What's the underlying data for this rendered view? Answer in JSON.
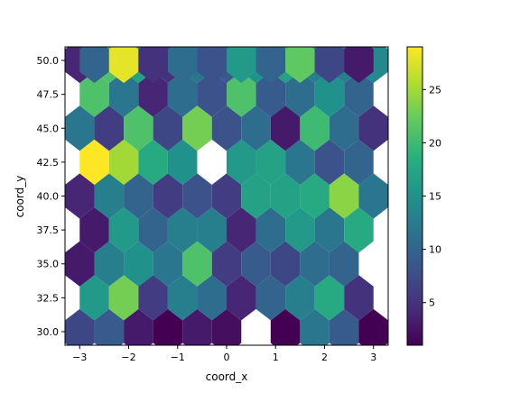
{
  "chart_data": {
    "type": "heatmap",
    "subtype": "hexbin",
    "title": "",
    "xlabel": "coord_x",
    "ylabel": "coord_y",
    "xlim": [
      -3.3,
      3.3
    ],
    "ylim": [
      29.0,
      51.0
    ],
    "xticks": [
      -3,
      -2,
      -1,
      0,
      1,
      2,
      3
    ],
    "xtick_labels": [
      "−3",
      "−2",
      "−1",
      "0",
      "1",
      "2",
      "3"
    ],
    "yticks": [
      30.0,
      32.5,
      35.0,
      37.5,
      40.0,
      42.5,
      45.0,
      47.5,
      50.0
    ],
    "ytick_labels": [
      "30.0",
      "32.5",
      "35.0",
      "37.5",
      "40.0",
      "42.5",
      "45.0",
      "47.5",
      "50.0"
    ],
    "colormap": "viridis",
    "color_range": [
      1,
      29
    ],
    "colorbar_ticks": [
      5,
      10,
      15,
      20,
      25
    ],
    "colorbar_tick_labels": [
      "5",
      "10",
      "15",
      "20",
      "25"
    ],
    "hex_size": [
      0.6,
      2.5
    ],
    "bins": [
      {
        "x": -3.0,
        "y": 30.0,
        "count": 7
      },
      {
        "x": -2.4,
        "y": 30.0,
        "count": 9
      },
      {
        "x": -1.8,
        "y": 30.0,
        "count": 3
      },
      {
        "x": -1.2,
        "y": 30.0,
        "count": 1
      },
      {
        "x": -0.6,
        "y": 30.0,
        "count": 3
      },
      {
        "x": 0.0,
        "y": 30.0,
        "count": 2
      },
      {
        "x": 1.2,
        "y": 30.0,
        "count": 1
      },
      {
        "x": 1.8,
        "y": 30.0,
        "count": 12
      },
      {
        "x": 2.4,
        "y": 30.0,
        "count": 9
      },
      {
        "x": 3.0,
        "y": 30.0,
        "count": 1
      },
      {
        "x": -2.7,
        "y": 32.5,
        "count": 16
      },
      {
        "x": -2.1,
        "y": 32.5,
        "count": 23
      },
      {
        "x": -1.5,
        "y": 32.5,
        "count": 6
      },
      {
        "x": -0.9,
        "y": 32.5,
        "count": 13
      },
      {
        "x": -0.3,
        "y": 32.5,
        "count": 11
      },
      {
        "x": 0.3,
        "y": 32.5,
        "count": 4
      },
      {
        "x": 0.9,
        "y": 32.5,
        "count": 10
      },
      {
        "x": 1.5,
        "y": 32.5,
        "count": 13
      },
      {
        "x": 2.1,
        "y": 32.5,
        "count": 18
      },
      {
        "x": 2.7,
        "y": 32.5,
        "count": 5
      },
      {
        "x": -3.0,
        "y": 35.0,
        "count": 3
      },
      {
        "x": -2.4,
        "y": 35.0,
        "count": 13
      },
      {
        "x": -1.8,
        "y": 35.0,
        "count": 15
      },
      {
        "x": -1.2,
        "y": 35.0,
        "count": 12
      },
      {
        "x": -0.6,
        "y": 35.0,
        "count": 21
      },
      {
        "x": 0.0,
        "y": 35.0,
        "count": 6
      },
      {
        "x": 0.6,
        "y": 35.0,
        "count": 9
      },
      {
        "x": 1.2,
        "y": 35.0,
        "count": 7
      },
      {
        "x": 1.8,
        "y": 35.0,
        "count": 11
      },
      {
        "x": 2.4,
        "y": 35.0,
        "count": 10
      },
      {
        "x": -2.7,
        "y": 37.5,
        "count": 3
      },
      {
        "x": -2.1,
        "y": 37.5,
        "count": 16
      },
      {
        "x": -1.5,
        "y": 37.5,
        "count": 10
      },
      {
        "x": -0.9,
        "y": 37.5,
        "count": 13
      },
      {
        "x": -0.3,
        "y": 37.5,
        "count": 13
      },
      {
        "x": 0.3,
        "y": 37.5,
        "count": 4
      },
      {
        "x": 0.9,
        "y": 37.5,
        "count": 11
      },
      {
        "x": 1.5,
        "y": 37.5,
        "count": 16
      },
      {
        "x": 2.1,
        "y": 37.5,
        "count": 12
      },
      {
        "x": 2.7,
        "y": 37.5,
        "count": 18
      },
      {
        "x": -3.0,
        "y": 40.0,
        "count": 4
      },
      {
        "x": -2.4,
        "y": 40.0,
        "count": 13
      },
      {
        "x": -1.8,
        "y": 40.0,
        "count": 10
      },
      {
        "x": -1.2,
        "y": 40.0,
        "count": 6
      },
      {
        "x": -0.6,
        "y": 40.0,
        "count": 8
      },
      {
        "x": 0.0,
        "y": 40.0,
        "count": 6
      },
      {
        "x": 0.6,
        "y": 40.0,
        "count": 17
      },
      {
        "x": 1.2,
        "y": 40.0,
        "count": 17
      },
      {
        "x": 1.8,
        "y": 40.0,
        "count": 18
      },
      {
        "x": 2.4,
        "y": 40.0,
        "count": 24
      },
      {
        "x": 3.0,
        "y": 40.0,
        "count": 12
      },
      {
        "x": -2.7,
        "y": 42.5,
        "count": 29
      },
      {
        "x": -2.1,
        "y": 42.5,
        "count": 25
      },
      {
        "x": -1.5,
        "y": 42.5,
        "count": 18
      },
      {
        "x": -0.9,
        "y": 42.5,
        "count": 15
      },
      {
        "x": 0.3,
        "y": 42.5,
        "count": 16
      },
      {
        "x": 0.9,
        "y": 42.5,
        "count": 17
      },
      {
        "x": 1.5,
        "y": 42.5,
        "count": 12
      },
      {
        "x": 2.1,
        "y": 42.5,
        "count": 8
      },
      {
        "x": 2.7,
        "y": 42.5,
        "count": 10
      },
      {
        "x": -3.0,
        "y": 45.0,
        "count": 12
      },
      {
        "x": -2.4,
        "y": 45.0,
        "count": 6
      },
      {
        "x": -1.8,
        "y": 45.0,
        "count": 21
      },
      {
        "x": -1.2,
        "y": 45.0,
        "count": 7
      },
      {
        "x": -0.6,
        "y": 45.0,
        "count": 23
      },
      {
        "x": 0.0,
        "y": 45.0,
        "count": 8
      },
      {
        "x": 0.6,
        "y": 45.0,
        "count": 11
      },
      {
        "x": 1.2,
        "y": 45.0,
        "count": 3
      },
      {
        "x": 1.8,
        "y": 45.0,
        "count": 20
      },
      {
        "x": 2.4,
        "y": 45.0,
        "count": 11
      },
      {
        "x": 3.0,
        "y": 45.0,
        "count": 5
      },
      {
        "x": -2.7,
        "y": 47.5,
        "count": 21
      },
      {
        "x": -2.1,
        "y": 47.5,
        "count": 12
      },
      {
        "x": -1.5,
        "y": 47.5,
        "count": 4
      },
      {
        "x": -0.9,
        "y": 47.5,
        "count": 11
      },
      {
        "x": -0.3,
        "y": 47.5,
        "count": 8
      },
      {
        "x": 0.3,
        "y": 47.5,
        "count": 21
      },
      {
        "x": 0.9,
        "y": 47.5,
        "count": 9
      },
      {
        "x": 1.5,
        "y": 47.5,
        "count": 11
      },
      {
        "x": 2.1,
        "y": 47.5,
        "count": 15
      },
      {
        "x": 2.7,
        "y": 47.5,
        "count": 10
      },
      {
        "x": -3.0,
        "y": 50.0,
        "count": 4
      },
      {
        "x": -2.4,
        "y": 50.0,
        "count": 21
      },
      {
        "x": -1.8,
        "y": 50.0,
        "count": 17
      },
      {
        "x": -1.2,
        "y": 50.0,
        "count": 5
      },
      {
        "x": -0.6,
        "y": 50.0,
        "count": 12
      },
      {
        "x": 0.0,
        "y": 50.0,
        "count": 9
      },
      {
        "x": 0.6,
        "y": 50.0,
        "count": 15
      },
      {
        "x": 1.2,
        "y": 50.0,
        "count": 17
      },
      {
        "x": 1.8,
        "y": 50.0,
        "count": 13
      },
      {
        "x": 2.4,
        "y": 50.0,
        "count": 13
      },
      {
        "x": 3.0,
        "y": 50.0,
        "count": 14
      },
      {
        "x": -2.7,
        "y": 50.0,
        "count": 10
      },
      {
        "x": -2.1,
        "y": 50.0,
        "count": 28
      },
      {
        "x": -1.5,
        "y": 50.0,
        "count": 5
      },
      {
        "x": -0.9,
        "y": 50.0,
        "count": 11
      },
      {
        "x": -0.3,
        "y": 50.0,
        "count": 8
      },
      {
        "x": 0.3,
        "y": 50.0,
        "count": 16
      },
      {
        "x": 0.9,
        "y": 50.0,
        "count": 10
      },
      {
        "x": 1.5,
        "y": 50.0,
        "count": 22
      },
      {
        "x": 2.1,
        "y": 50.0,
        "count": 7
      },
      {
        "x": 2.7,
        "y": 50.0,
        "count": 3
      }
    ]
  }
}
